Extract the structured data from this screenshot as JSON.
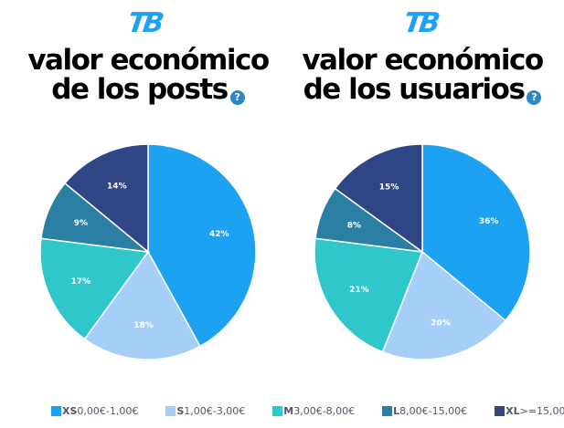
{
  "logo": "TB",
  "help_icon": "question-icon",
  "colors": {
    "XS": "#1da1f2",
    "S": "#a5cff9",
    "M": "#2fc6cc",
    "L": "#2b7fa5",
    "XL": "#2f4585"
  },
  "chart_data": [
    {
      "type": "pie",
      "title_line1": "valor económico",
      "title_line2": "de los posts",
      "categories": [
        "XS",
        "S",
        "M",
        "L",
        "XL"
      ],
      "values": [
        42,
        18,
        17,
        9,
        14
      ],
      "labels": [
        "42%",
        "18%",
        "17%",
        "9%",
        "14%"
      ]
    },
    {
      "type": "pie",
      "title_line1": "valor económico",
      "title_line2": "de los usuarios",
      "categories": [
        "XS",
        "S",
        "M",
        "L",
        "XL"
      ],
      "values": [
        36,
        20,
        21,
        8,
        15
      ],
      "labels": [
        "36%",
        "20%",
        "21%",
        "8%",
        "15%"
      ]
    }
  ],
  "legend": [
    {
      "key": "XS",
      "range": "0,00€-1,00€"
    },
    {
      "key": "S",
      "range": "1,00€-3,00€"
    },
    {
      "key": "M",
      "range": "3,00€-8,00€"
    },
    {
      "key": "L",
      "range": "8,00€-15,00€"
    },
    {
      "key": "XL",
      "range": ">=15,00€"
    }
  ]
}
